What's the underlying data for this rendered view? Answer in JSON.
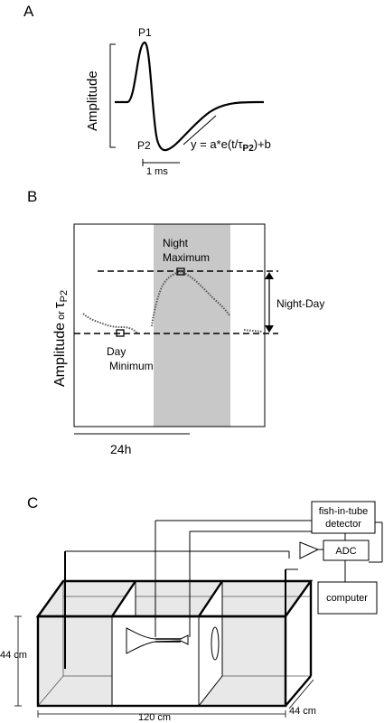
{
  "panel_a": {
    "letter": "A",
    "peak1_label": "P1",
    "peak2_label": "P2",
    "y_axis_label": "Amplitude",
    "equation_main": "y = a*e(t/τ",
    "equation_sub": "P2",
    "equation_tail": ")+b",
    "scale_bar_label": "1 ms"
  },
  "panel_b": {
    "letter": "B",
    "y_axis_label_main": "Amplitude",
    "y_axis_label_or": "or",
    "y_axis_label_tau": "τ",
    "y_axis_label_tau_sub": "P2",
    "night_max_label_1": "Night",
    "night_max_label_2": "Maximum",
    "day_min_label_1": "Day",
    "day_min_label_2": "Minimum",
    "range_label": "Night-Day",
    "time_bar_label": "24h",
    "shade_color": "#c8c8c8"
  },
  "panel_c": {
    "letter": "C",
    "detector_label_1": "fish-in-tube",
    "detector_label_2": "detector",
    "adc_label": "ADC",
    "computer_label": "computer",
    "height_label": "44 cm",
    "length_label": "120 cm",
    "depth_label": "44 cm",
    "tank_fill": "#e8e8e8"
  }
}
